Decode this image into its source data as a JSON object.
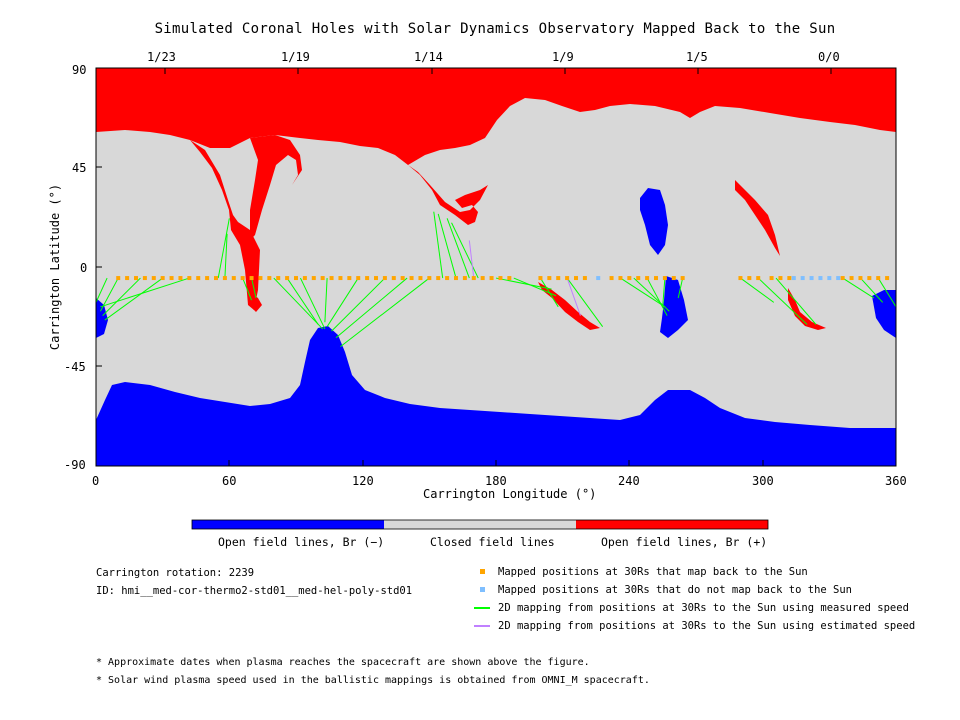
{
  "title": "Simulated Coronal Holes with Solar Dynamics Observatory Mapped Back to the Sun",
  "chart_data": {
    "type": "scatter",
    "xlabel": "Carrington Longitude (°)",
    "ylabel": "Carrington Latitude (°)",
    "xlim": [
      0,
      360
    ],
    "ylim": [
      -90,
      90
    ],
    "x_ticks": [
      "0",
      "60",
      "120",
      "180",
      "240",
      "300",
      "360"
    ],
    "y_ticks": [
      "90",
      "45",
      "0",
      "-45",
      "-90"
    ],
    "top_ticks": [
      "1/23",
      "1/19",
      "1/14",
      "1/9",
      "1/5",
      "0/0"
    ],
    "top_tick_lon": [
      31,
      91,
      151,
      211,
      271,
      331
    ],
    "colors": {
      "open_negative": "#0000ff",
      "closed": "#d8d8d8",
      "open_positive": "#ff0000",
      "mapped_back": "#ffa500",
      "not_mapped": "#7fbfff",
      "measured_speed": "#00ff00",
      "estimated_speed": "#c080ff"
    },
    "mapped_points_lat": -5,
    "mapped_points_lon": [
      10,
      14,
      18,
      22,
      26,
      30,
      34,
      38,
      42,
      46,
      50,
      54,
      58,
      62,
      66,
      70,
      74,
      78,
      82,
      86,
      90,
      94,
      98,
      102,
      106,
      110,
      114,
      118,
      122,
      126,
      130,
      134,
      138,
      142,
      146,
      150,
      154,
      158,
      162,
      166,
      170,
      174,
      178,
      182,
      186,
      200,
      204,
      208,
      212,
      216,
      220,
      232,
      236,
      240,
      244,
      248,
      252,
      256,
      260,
      264,
      290,
      294,
      298,
      304,
      308,
      312,
      336,
      340,
      344,
      348,
      352,
      356
    ],
    "unmapped_points_lon": [
      226,
      314,
      318,
      322,
      326,
      330,
      334
    ],
    "mapping_lines": [
      {
        "from": [
          5,
          -5
        ],
        "to": [
          0,
          -16
        ],
        "speed": "measured"
      },
      {
        "from": [
          10,
          -5
        ],
        "to": [
          2,
          -20
        ],
        "speed": "measured"
      },
      {
        "from": [
          20,
          -5
        ],
        "to": [
          3,
          -22
        ],
        "speed": "measured"
      },
      {
        "from": [
          30,
          -5
        ],
        "to": [
          4,
          -24
        ],
        "speed": "measured"
      },
      {
        "from": [
          42,
          -5
        ],
        "to": [
          2,
          -18
        ],
        "speed": "measured"
      },
      {
        "from": [
          55,
          -5
        ],
        "to": [
          60,
          22
        ],
        "speed": "measured"
      },
      {
        "from": [
          58,
          -5
        ],
        "to": [
          59,
          15
        ],
        "speed": "measured"
      },
      {
        "from": [
          66,
          -5
        ],
        "to": [
          70,
          -15
        ],
        "speed": "measured"
      },
      {
        "from": [
          70,
          -5
        ],
        "to": [
          72,
          -14
        ],
        "speed": "measured"
      },
      {
        "from": [
          80,
          -5
        ],
        "to": [
          102,
          -28
        ],
        "speed": "measured"
      },
      {
        "from": [
          86,
          -5
        ],
        "to": [
          100,
          -26
        ],
        "speed": "measured"
      },
      {
        "from": [
          92,
          -5
        ],
        "to": [
          103,
          -28
        ],
        "speed": "measured"
      },
      {
        "from": [
          104,
          -5
        ],
        "to": [
          103,
          -25
        ],
        "speed": "measured"
      },
      {
        "from": [
          118,
          -5
        ],
        "to": [
          104,
          -27
        ],
        "speed": "measured"
      },
      {
        "from": [
          130,
          -5
        ],
        "to": [
          106,
          -29
        ],
        "speed": "measured"
      },
      {
        "from": [
          140,
          -5
        ],
        "to": [
          108,
          -32
        ],
        "speed": "measured"
      },
      {
        "from": [
          150,
          -5
        ],
        "to": [
          110,
          -36
        ],
        "speed": "measured"
      },
      {
        "from": [
          156,
          -5
        ],
        "to": [
          152,
          25
        ],
        "speed": "measured"
      },
      {
        "from": [
          162,
          -5
        ],
        "to": [
          154,
          24
        ],
        "speed": "measured"
      },
      {
        "from": [
          168,
          -5
        ],
        "to": [
          158,
          22
        ],
        "speed": "measured"
      },
      {
        "from": [
          172,
          -5
        ],
        "to": [
          160,
          20
        ],
        "speed": "measured"
      },
      {
        "from": [
          180,
          -5
        ],
        "to": [
          205,
          -10
        ],
        "speed": "measured"
      },
      {
        "from": [
          188,
          -5
        ],
        "to": [
          207,
          -13
        ],
        "speed": "measured"
      },
      {
        "from": [
          200,
          -5
        ],
        "to": [
          208,
          -18
        ],
        "speed": "measured"
      },
      {
        "from": [
          212,
          -5
        ],
        "to": [
          228,
          -27
        ],
        "speed": "measured"
      },
      {
        "from": [
          236,
          -5
        ],
        "to": [
          256,
          -18
        ],
        "speed": "measured"
      },
      {
        "from": [
          242,
          -5
        ],
        "to": [
          258,
          -20
        ],
        "speed": "measured"
      },
      {
        "from": [
          248,
          -5
        ],
        "to": [
          257,
          -22
        ],
        "speed": "measured"
      },
      {
        "from": [
          256,
          -5
        ],
        "to": [
          255,
          -18
        ],
        "speed": "measured"
      },
      {
        "from": [
          264,
          -5
        ],
        "to": [
          262,
          -14
        ],
        "speed": "measured"
      },
      {
        "from": [
          290,
          -5
        ],
        "to": [
          305,
          -16
        ],
        "speed": "measured"
      },
      {
        "from": [
          298,
          -5
        ],
        "to": [
          320,
          -26
        ],
        "speed": "measured"
      },
      {
        "from": [
          306,
          -5
        ],
        "to": [
          324,
          -26
        ],
        "speed": "measured"
      },
      {
        "from": [
          336,
          -5
        ],
        "to": [
          350,
          -14
        ],
        "speed": "measured"
      },
      {
        "from": [
          344,
          -5
        ],
        "to": [
          354,
          -16
        ],
        "speed": "measured"
      },
      {
        "from": [
          352,
          -5
        ],
        "to": [
          360,
          -18
        ],
        "speed": "measured"
      },
      {
        "from": [
          170,
          -5
        ],
        "to": [
          168,
          12
        ],
        "speed": "estimated"
      },
      {
        "from": [
          212,
          -5
        ],
        "to": [
          218,
          -22
        ],
        "speed": "estimated"
      }
    ]
  },
  "colorbar": {
    "labels": [
      "Open field lines, Br (−)",
      "Closed field lines",
      "Open field lines, Br (+)"
    ]
  },
  "info": {
    "rotation": "Carrington rotation: 2239",
    "id": "ID: hmi__med-cor-thermo2-std01__med-hel-poly-std01"
  },
  "legend": [
    {
      "marker": "square",
      "color": "#ffa500",
      "label": "Mapped positions at 30Rs that map back to the Sun"
    },
    {
      "marker": "square",
      "color": "#7fbfff",
      "label": "Mapped positions at 30Rs that do not map back to the Sun"
    },
    {
      "marker": "line",
      "color": "#00ff00",
      "label": "2D mapping from positions at 30Rs to the Sun using measured speed"
    },
    {
      "marker": "line",
      "color": "#c080ff",
      "label": "2D mapping from positions at 30Rs to the Sun using estimated speed"
    }
  ],
  "notes": [
    "* Approximate dates when plasma reaches the spacecraft are shown above the figure.",
    "* Solar wind plasma speed used in the ballistic mappings is obtained from OMNI_M spacecraft."
  ]
}
